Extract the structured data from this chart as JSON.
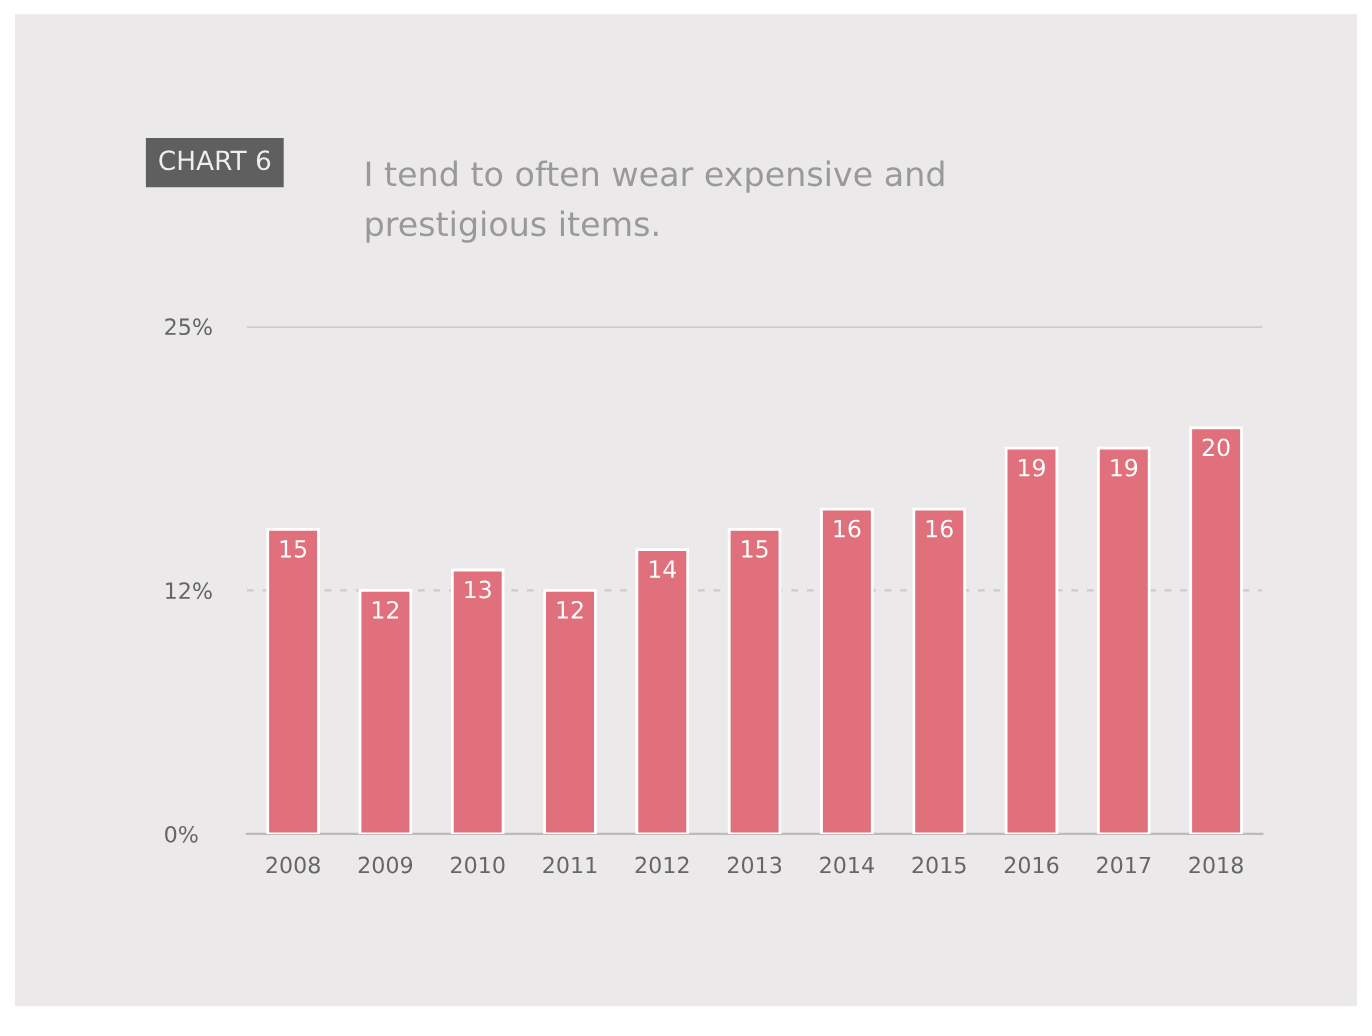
{
  "chart_data": {
    "type": "bar",
    "title": "I tend to often wear expensive and\nprestigious items.",
    "annotations": [
      "CHART 6"
    ],
    "categories": [
      "2008",
      "2009",
      "2010",
      "2011",
      "2012",
      "2013",
      "2014",
      "2015",
      "2016",
      "2017",
      "2018"
    ],
    "values": [
      15,
      12,
      13,
      12,
      14,
      15,
      16,
      16,
      19,
      19,
      20
    ],
    "color": "#e0707b",
    "ylim": [
      0,
      25
    ],
    "yticks": [
      {
        "value": 0,
        "label": "0%"
      },
      {
        "value": 12,
        "label": "12%"
      },
      {
        "value": 25,
        "label": "25%"
      }
    ],
    "grid": "y",
    "data_labels": true
  }
}
